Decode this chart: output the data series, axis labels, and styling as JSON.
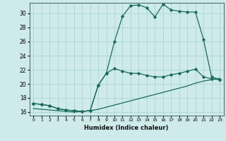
{
  "xlabel": "Humidex (Indice chaleur)",
  "ylabel": "",
  "bg_color": "#ceeaea",
  "grid_color": "#b0d8d8",
  "line_color": "#1a6b5a",
  "xlim": [
    -0.5,
    23.5
  ],
  "ylim": [
    15.5,
    31.5
  ],
  "xticks": [
    0,
    1,
    2,
    3,
    4,
    5,
    6,
    7,
    8,
    9,
    10,
    11,
    12,
    13,
    14,
    15,
    16,
    17,
    18,
    19,
    20,
    21,
    22,
    23
  ],
  "yticks": [
    16,
    18,
    20,
    22,
    24,
    26,
    28,
    30
  ],
  "line1_x": [
    0,
    1,
    2,
    3,
    4,
    5,
    6,
    7,
    8,
    9,
    10,
    11,
    12,
    13,
    14,
    15,
    16,
    17,
    18,
    19,
    20,
    21,
    22,
    23
  ],
  "line1_y": [
    17.2,
    17.1,
    16.9,
    16.5,
    16.3,
    16.2,
    16.1,
    16.2,
    19.8,
    21.5,
    26.0,
    29.6,
    31.1,
    31.2,
    30.8,
    29.5,
    31.3,
    30.5,
    30.3,
    30.2,
    30.2,
    26.3,
    21.0,
    20.6
  ],
  "line2_x": [
    0,
    1,
    2,
    3,
    4,
    5,
    6,
    7,
    8,
    9,
    10,
    11,
    12,
    13,
    14,
    15,
    16,
    17,
    18,
    19,
    20,
    21,
    22,
    23
  ],
  "line2_y": [
    17.2,
    17.1,
    16.9,
    16.5,
    16.3,
    16.2,
    16.1,
    16.2,
    19.8,
    21.5,
    22.2,
    21.8,
    21.5,
    21.5,
    21.2,
    21.0,
    21.0,
    21.3,
    21.5,
    21.8,
    22.1,
    21.0,
    20.7,
    20.6
  ],
  "line3_x": [
    0,
    1,
    2,
    3,
    4,
    5,
    6,
    7,
    8,
    9,
    10,
    11,
    12,
    13,
    14,
    15,
    16,
    17,
    18,
    19,
    20,
    21,
    22,
    23
  ],
  "line3_y": [
    16.5,
    16.4,
    16.3,
    16.2,
    16.1,
    16.0,
    16.1,
    16.2,
    16.4,
    16.7,
    17.0,
    17.3,
    17.6,
    17.9,
    18.2,
    18.5,
    18.8,
    19.1,
    19.4,
    19.7,
    20.1,
    20.4,
    20.6,
    20.8
  ]
}
